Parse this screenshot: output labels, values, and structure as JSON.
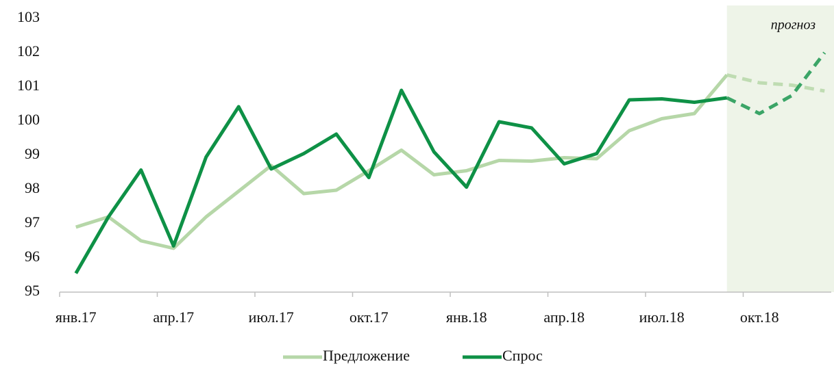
{
  "chart_data": {
    "type": "line",
    "categories": [
      "янв.17",
      null,
      null,
      "апр.17",
      null,
      null,
      "июл.17",
      null,
      null,
      "окт.17",
      null,
      null,
      "янв.18",
      null,
      null,
      "апр.18",
      null,
      null,
      "июл.18",
      null,
      null,
      "окт.18",
      null,
      null
    ],
    "series": [
      {
        "name": "Предложение",
        "color": "#b6d7a8",
        "values": [
          96.9,
          97.2,
          96.5,
          96.28,
          97.2,
          97.95,
          98.7,
          97.88,
          97.98,
          98.55,
          99.15,
          98.43,
          98.55,
          98.85,
          98.83,
          98.93,
          98.9,
          99.72,
          100.07,
          100.22,
          101.35,
          101.12,
          101.05,
          100.88
        ]
      },
      {
        "name": "Спрос",
        "color": "#0e9146",
        "values": [
          95.55,
          97.2,
          98.57,
          96.35,
          98.95,
          100.42,
          98.6,
          99.05,
          99.62,
          98.35,
          100.9,
          99.1,
          98.07,
          99.98,
          99.8,
          98.75,
          99.05,
          100.62,
          100.65,
          100.55,
          100.68,
          100.22,
          100.75,
          102.0
        ]
      }
    ],
    "ylim": [
      95,
      103
    ],
    "yticks": [
      95,
      96,
      97,
      98,
      99,
      100,
      101,
      102,
      103
    ],
    "forecast_label": "прогноз",
    "forecast_from_index": 20,
    "forecast_color": "#eef4e8",
    "legend": "bottom"
  }
}
